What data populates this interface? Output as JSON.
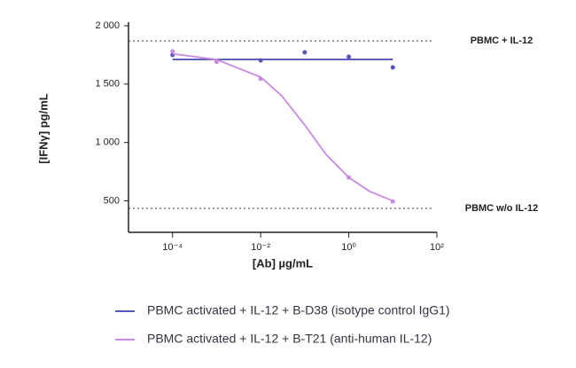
{
  "chart_data": {
    "type": "line",
    "x_label": "[Ab] µg/mL",
    "y_label": "[IFNγ] pg/mL",
    "xscale": "log",
    "xlim": [
      1e-05,
      100
    ],
    "xticks": [
      {
        "value": 0.0001,
        "label": "10⁻⁴"
      },
      {
        "value": 0.01,
        "label": "10⁻²"
      },
      {
        "value": 1,
        "label": "10⁰"
      },
      {
        "value": 100,
        "label": "10²"
      }
    ],
    "ylim": [
      230,
      2000
    ],
    "yticks": [
      500,
      {
        "value": 1000,
        "label": "1 000"
      },
      {
        "value": 1500,
        "label": "1 500"
      },
      {
        "value": 2000,
        "label": "2 000"
      }
    ],
    "reference_lines": [
      {
        "label": "PBMC + IL-12",
        "value": 1870
      },
      {
        "label": "PBMC w/o IL-12",
        "value": 435
      }
    ],
    "series": [
      {
        "name": "PBMC activated + IL-12 + B-D38 (isotype control IgG1)",
        "color": "#5656b8",
        "x": [
          0.0001,
          0.001,
          0.01,
          0.1,
          1,
          10
        ],
        "values": [
          1749,
          1696,
          1703,
          1772,
          1734,
          1643
        ],
        "fit_x": [
          0.0001,
          10
        ],
        "fit_values": [
          1711,
          1711
        ]
      },
      {
        "name": "PBMC activated + IL-12 + B-T21 (anti-human  IL-12)",
        "color": "#c98be0",
        "x": [
          0.0001,
          0.001,
          0.01,
          1,
          10
        ],
        "values": [
          1780,
          1690,
          1544,
          700,
          494
        ],
        "fit_x": [
          0.0001,
          0.001,
          0.01,
          0.03,
          0.1,
          0.3,
          1,
          3,
          10
        ],
        "fit_values": [
          1760,
          1710,
          1560,
          1400,
          1150,
          900,
          700,
          580,
          500
        ]
      }
    ]
  }
}
